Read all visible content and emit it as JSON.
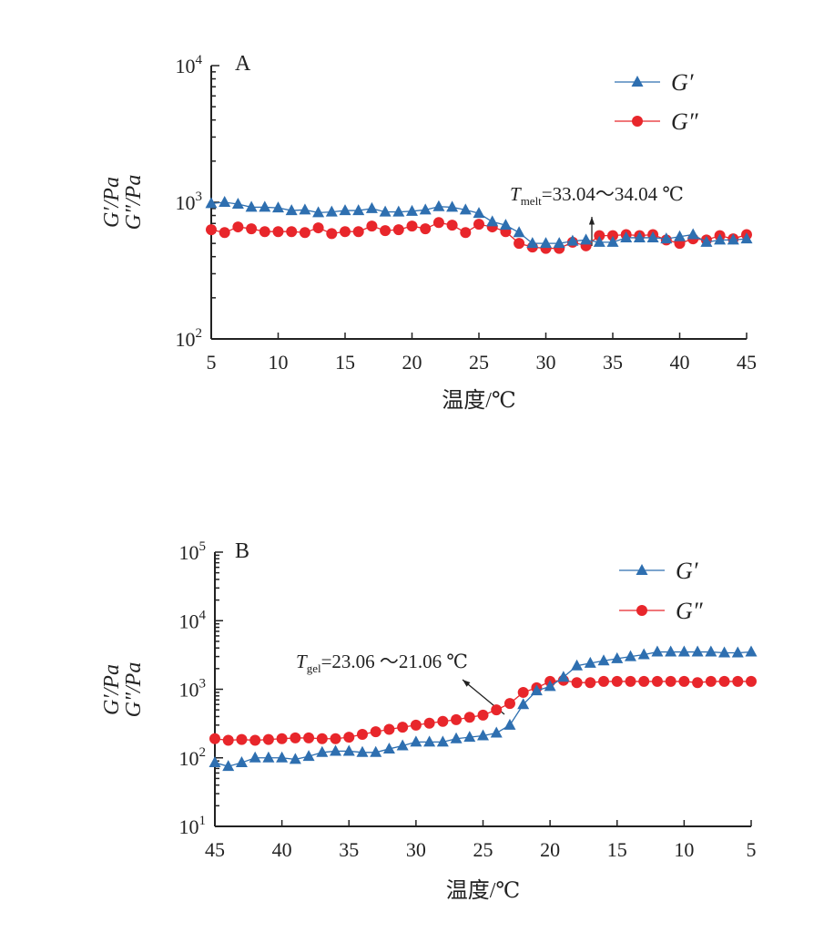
{
  "colors": {
    "gp": "#2e6fb0",
    "gpp": "#e8262b"
  },
  "chart_data": [
    {
      "type": "line",
      "panel": "A",
      "xlabel": "温度/℃",
      "ylabel1": "G′/Pa",
      "ylabel2": "G″/Pa",
      "yscale": "log",
      "ylim": [
        100,
        10000
      ],
      "xlim": [
        5,
        45
      ],
      "xticks": [
        "5",
        "10",
        "15",
        "20",
        "25",
        "30",
        "35",
        "40",
        "45"
      ],
      "yticks": [
        {
          "base": "10",
          "exp": "2"
        },
        {
          "base": "10",
          "exp": "3"
        },
        {
          "base": "10",
          "exp": "4"
        }
      ],
      "annotation": {
        "sym": "T",
        "sub": "melt",
        "text": "=33.04～34.04 ℃"
      },
      "legend_position": "top-right",
      "x": [
        5,
        6,
        7,
        8,
        9,
        10,
        11,
        12,
        13,
        14,
        15,
        16,
        17,
        18,
        19,
        20,
        21,
        22,
        23,
        24,
        25,
        26,
        27,
        28,
        29,
        30,
        31,
        32,
        33,
        34,
        35,
        36,
        37,
        38,
        39,
        40,
        41,
        42,
        43,
        44,
        45
      ],
      "series": [
        {
          "name": "G′",
          "marker": "triangle",
          "values": [
            980,
            1000,
            970,
            920,
            920,
            910,
            870,
            880,
            840,
            850,
            870,
            870,
            900,
            850,
            850,
            860,
            880,
            930,
            920,
            880,
            830,
            720,
            680,
            600,
            500,
            500,
            500,
            520,
            530,
            510,
            510,
            550,
            550,
            550,
            540,
            560,
            580,
            510,
            530,
            530,
            540
          ]
        },
        {
          "name": "G″",
          "marker": "circle",
          "values": [
            630,
            600,
            660,
            640,
            610,
            610,
            610,
            600,
            650,
            590,
            610,
            610,
            670,
            620,
            630,
            670,
            640,
            710,
            680,
            600,
            690,
            660,
            610,
            500,
            470,
            460,
            460,
            510,
            480,
            570,
            570,
            580,
            570,
            580,
            530,
            500,
            540,
            530,
            570,
            540,
            580
          ]
        }
      ]
    },
    {
      "type": "line",
      "panel": "B",
      "xlabel": "温度/℃",
      "ylabel1": "G′/Pa",
      "ylabel2": "G″/Pa",
      "yscale": "log",
      "ylim": [
        10,
        100000
      ],
      "xlim": [
        45,
        5
      ],
      "xticks": [
        "45",
        "40",
        "35",
        "30",
        "25",
        "20",
        "15",
        "10",
        "5"
      ],
      "yticks": [
        {
          "base": "10",
          "exp": "1"
        },
        {
          "base": "10",
          "exp": "2"
        },
        {
          "base": "10",
          "exp": "3"
        },
        {
          "base": "10",
          "exp": "4"
        },
        {
          "base": "10",
          "exp": "5"
        }
      ],
      "annotation": {
        "sym": "T",
        "sub": "gel",
        "text": "=23.06 ～21.06 ℃"
      },
      "legend_position": "top-right",
      "x": [
        45,
        44,
        43,
        42,
        41,
        40,
        39,
        38,
        37,
        36,
        35,
        34,
        33,
        32,
        31,
        30,
        29,
        28,
        27,
        26,
        25,
        24,
        23,
        22,
        21,
        20,
        19,
        18,
        17,
        16,
        15,
        14,
        13,
        12,
        11,
        10,
        9,
        8,
        7,
        6,
        5
      ],
      "series": [
        {
          "name": "G′",
          "marker": "triangle",
          "values": [
            85,
            75,
            85,
            100,
            100,
            100,
            95,
            105,
            120,
            125,
            125,
            120,
            120,
            135,
            150,
            170,
            170,
            170,
            190,
            200,
            210,
            230,
            300,
            600,
            950,
            1100,
            1500,
            2200,
            2400,
            2600,
            2800,
            3000,
            3200,
            3500,
            3500,
            3500,
            3500,
            3500,
            3400,
            3400,
            3500
          ]
        },
        {
          "name": "G″",
          "marker": "circle",
          "values": [
            190,
            180,
            185,
            180,
            185,
            190,
            195,
            195,
            190,
            190,
            200,
            220,
            240,
            260,
            280,
            300,
            320,
            340,
            360,
            390,
            420,
            500,
            620,
            900,
            1050,
            1300,
            1350,
            1250,
            1250,
            1300,
            1300,
            1300,
            1300,
            1300,
            1300,
            1300,
            1250,
            1300,
            1300,
            1300,
            1300
          ]
        }
      ]
    }
  ]
}
